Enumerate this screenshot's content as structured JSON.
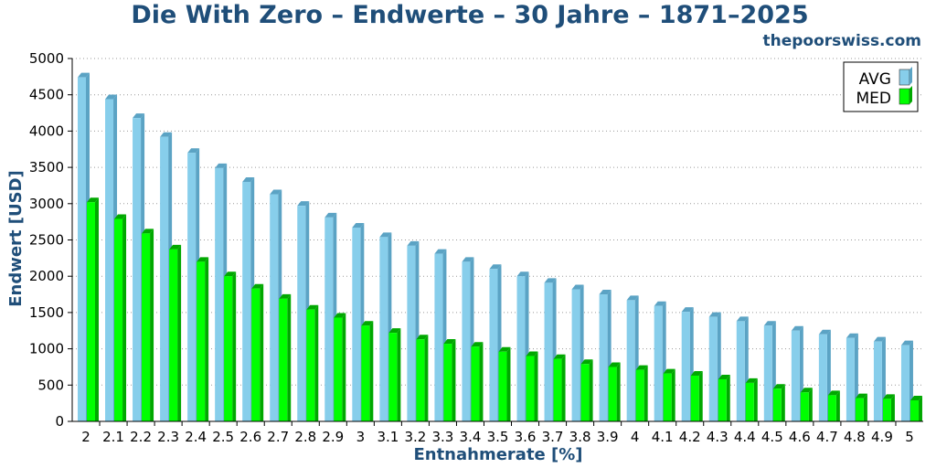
{
  "chart_data": {
    "type": "bar",
    "title": "Die With Zero – Endwerte – 30 Jahre – 1871–2025",
    "source_label": "thepoorswiss.com",
    "xlabel": "Entnahmerate [%]",
    "ylabel": "Endwert [USD]",
    "ylim": [
      0,
      5000
    ],
    "yticks": [
      "0",
      "500",
      "1000",
      "1500",
      "2000",
      "2500",
      "3000",
      "3500",
      "4000",
      "4500",
      "5000"
    ],
    "grid": "horizontal dotted",
    "legend_position": "top-right",
    "categories": [
      "2",
      "2.1",
      "2.2",
      "2.3",
      "2.4",
      "2.5",
      "2.6",
      "2.7",
      "2.8",
      "2.9",
      "3",
      "3.1",
      "3.2",
      "3.3",
      "3.4",
      "3.5",
      "3.6",
      "3.7",
      "3.8",
      "3.9",
      "4",
      "4.1",
      "4.2",
      "4.3",
      "4.4",
      "4.5",
      "4.6",
      "4.7",
      "4.8",
      "4.9",
      "5"
    ],
    "series": [
      {
        "name": "AVG",
        "color": "#87ceeb",
        "side_color": "#5ba3c4",
        "values": [
          4740,
          4440,
          4180,
          3920,
          3700,
          3490,
          3300,
          3130,
          2970,
          2810,
          2670,
          2540,
          2420,
          2310,
          2200,
          2100,
          2000,
          1910,
          1820,
          1750,
          1670,
          1590,
          1510,
          1440,
          1380,
          1320,
          1250,
          1200,
          1150,
          1100,
          1050
        ]
      },
      {
        "name": "MED",
        "color": "#00ff00",
        "side_color": "#00a800",
        "values": [
          3020,
          2790,
          2590,
          2370,
          2200,
          2000,
          1830,
          1690,
          1540,
          1430,
          1320,
          1220,
          1130,
          1070,
          1030,
          960,
          900,
          860,
          790,
          750,
          710,
          660,
          630,
          580,
          530,
          450,
          400,
          360,
          320,
          310,
          290
        ]
      }
    ]
  }
}
